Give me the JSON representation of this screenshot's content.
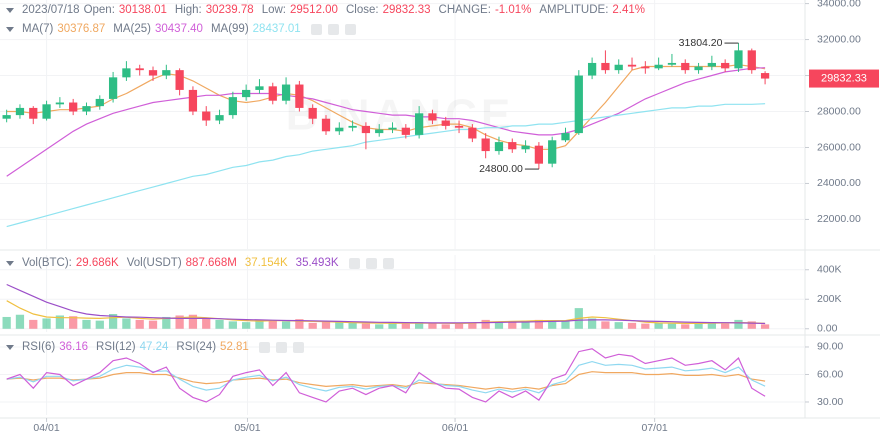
{
  "header": {
    "date": "2023/07/18",
    "items": [
      {
        "label": "Open:",
        "value": "30138.01"
      },
      {
        "label": "High:",
        "value": "30239.78"
      },
      {
        "label": "Low:",
        "value": "29512.00"
      },
      {
        "label": "Close:",
        "value": "29832.33"
      },
      {
        "label": "CHANGE:",
        "value": "-1.01%"
      },
      {
        "label": "AMPLITUDE:",
        "value": "2.41%"
      }
    ]
  },
  "chart_data": [
    {
      "type": "candlestick",
      "watermark": "BINANCE",
      "up_color": "#2ebd85",
      "down_color": "#f6465d",
      "xlim": [
        -0.5,
        60
      ],
      "ylim": [
        20300,
        34200
      ],
      "yticks": [
        {
          "value": 22000,
          "label": "22000.00"
        },
        {
          "value": 24000,
          "label": "24000.00"
        },
        {
          "value": 26000,
          "label": "26000.00"
        },
        {
          "value": 28000,
          "label": "28000.00"
        },
        {
          "value": 30000,
          "label": "30000.00"
        },
        {
          "value": 32000,
          "label": "32000.00"
        },
        {
          "value": 34000,
          "label": "34000.00"
        }
      ],
      "annotations": {
        "high": "31804.20",
        "low": "24800.00"
      },
      "last_price": "29832.33",
      "candles": [
        [
          27600,
          28100,
          27400,
          27800
        ],
        [
          27800,
          28400,
          27600,
          28200
        ],
        [
          28200,
          28300,
          27300,
          27600
        ],
        [
          27600,
          28600,
          27500,
          28400
        ],
        [
          28400,
          28800,
          28200,
          28500
        ],
        [
          28500,
          28700,
          27800,
          28000
        ],
        [
          28000,
          28500,
          27800,
          28300
        ],
        [
          28300,
          28900,
          28100,
          28700
        ],
        [
          28700,
          30200,
          28500,
          29900
        ],
        [
          29900,
          30800,
          29700,
          30400
        ],
        [
          30400,
          30600,
          30000,
          30300
        ],
        [
          30300,
          30500,
          29700,
          30000
        ],
        [
          30000,
          30600,
          29800,
          30300
        ],
        [
          30300,
          30400,
          28900,
          29200
        ],
        [
          29200,
          29400,
          27800,
          28000
        ],
        [
          28000,
          28300,
          27200,
          27500
        ],
        [
          27500,
          28100,
          27300,
          27800
        ],
        [
          27800,
          29100,
          27600,
          28800
        ],
        [
          28800,
          29500,
          28600,
          29200
        ],
        [
          29200,
          29800,
          29000,
          29400
        ],
        [
          29400,
          29600,
          28400,
          28600
        ],
        [
          28600,
          29900,
          28400,
          29500
        ],
        [
          29500,
          29700,
          28000,
          28200
        ],
        [
          28200,
          28400,
          27300,
          27600
        ],
        [
          27600,
          27800,
          26700,
          26900
        ],
        [
          26900,
          27400,
          26700,
          27100
        ],
        [
          27100,
          27500,
          26900,
          27200
        ],
        [
          27200,
          27400,
          25900,
          26800
        ],
        [
          26800,
          27300,
          26600,
          27000
        ],
        [
          27000,
          27400,
          26800,
          27100
        ],
        [
          27100,
          27300,
          26500,
          26700
        ],
        [
          26700,
          28300,
          26500,
          27900
        ],
        [
          27900,
          28100,
          27300,
          27500
        ],
        [
          27500,
          27700,
          27000,
          27200
        ],
        [
          27200,
          27500,
          26800,
          27100
        ],
        [
          27100,
          27300,
          26300,
          26500
        ],
        [
          26500,
          26800,
          25400,
          25800
        ],
        [
          25800,
          26600,
          25600,
          26300
        ],
        [
          26300,
          26500,
          25700,
          25900
        ],
        [
          25900,
          26400,
          25700,
          26100
        ],
        [
          26100,
          26300,
          24800,
          25100
        ],
        [
          25100,
          26600,
          24900,
          26400
        ],
        [
          26400,
          27100,
          26300,
          26800
        ],
        [
          26800,
          30300,
          26700,
          30000
        ],
        [
          30000,
          31000,
          29800,
          30700
        ],
        [
          30700,
          31400,
          30100,
          30300
        ],
        [
          30300,
          30900,
          30100,
          30600
        ],
        [
          30600,
          31000,
          30300,
          30500
        ],
        [
          30500,
          30800,
          30100,
          30400
        ],
        [
          30400,
          31000,
          30300,
          30600
        ],
        [
          30600,
          31200,
          30500,
          30700
        ],
        [
          30700,
          30900,
          30100,
          30300
        ],
        [
          30300,
          30700,
          30100,
          30500
        ],
        [
          30500,
          31100,
          30300,
          30700
        ],
        [
          30700,
          30900,
          30200,
          30400
        ],
        [
          30400,
          31804.2,
          30200,
          31400
        ],
        [
          31400,
          31500,
          30100,
          30300
        ],
        [
          30138.01,
          30239.78,
          29512,
          29832.33
        ]
      ],
      "series": [
        {
          "name": "MA(7)",
          "value_label": "30376.87",
          "color": "#f0a860",
          "values": [
            28000,
            28000,
            27900,
            28000,
            28100,
            28100,
            28200,
            28300,
            28700,
            29000,
            29400,
            29800,
            30100,
            30000,
            29700,
            29300,
            28900,
            28600,
            28500,
            28600,
            28800,
            29000,
            28900,
            28600,
            28200,
            27800,
            27400,
            27100,
            27000,
            27000,
            26900,
            27100,
            27200,
            27300,
            27300,
            27100,
            26700,
            26400,
            26200,
            26100,
            25900,
            25900,
            26100,
            26900,
            27700,
            28500,
            29400,
            30300,
            30500,
            30500,
            30500,
            30500,
            30500,
            30500,
            30500,
            30600,
            30500,
            30377
          ]
        },
        {
          "name": "MA(25)",
          "value_label": "30437.40",
          "color": "#d05fd8",
          "values": [
            24400,
            24900,
            25400,
            25900,
            26400,
            26900,
            27300,
            27600,
            27900,
            28100,
            28300,
            28500,
            28600,
            28700,
            28800,
            28900,
            28900,
            29000,
            29000,
            29000,
            29000,
            28900,
            28800,
            28700,
            28500,
            28300,
            28100,
            28000,
            27900,
            27800,
            27800,
            27700,
            27700,
            27600,
            27600,
            27500,
            27300,
            27100,
            26900,
            26800,
            26700,
            26700,
            26800,
            27000,
            27300,
            27600,
            27900,
            28300,
            28700,
            29000,
            29300,
            29600,
            29800,
            30000,
            30200,
            30300,
            30400,
            30437
          ]
        },
        {
          "name": "MA(99)",
          "value_label": "28437.01",
          "color": "#8fe3f0",
          "values": [
            21600,
            21800,
            22000,
            22200,
            22400,
            22600,
            22800,
            23000,
            23200,
            23400,
            23600,
            23800,
            24000,
            24200,
            24400,
            24500,
            24700,
            24900,
            25000,
            25200,
            25300,
            25500,
            25600,
            25800,
            25900,
            26000,
            26100,
            26300,
            26400,
            26500,
            26600,
            26700,
            26800,
            26900,
            27000,
            27000,
            27100,
            27100,
            27200,
            27200,
            27300,
            27300,
            27400,
            27500,
            27600,
            27700,
            27800,
            27900,
            28000,
            28100,
            28200,
            28200,
            28300,
            28300,
            28400,
            28400,
            28400,
            28437
          ]
        }
      ]
    },
    {
      "type": "bar",
      "ylim": [
        -22000,
        500000
      ],
      "yticks": [
        {
          "value": 0,
          "label": "0.00"
        },
        {
          "value": 200000,
          "label": "200K"
        },
        {
          "value": 400000,
          "label": "400K"
        }
      ],
      "legend": [
        {
          "label": "Vol(BTC):",
          "value": "29.686K"
        },
        {
          "label": "Vol(USDT)",
          "value": "887.668M"
        }
      ],
      "values": [
        80000,
        95000,
        60000,
        70000,
        90000,
        85000,
        60000,
        55000,
        100000,
        70000,
        60000,
        55000,
        80000,
        90000,
        95000,
        70000,
        60000,
        50000,
        45000,
        60000,
        55000,
        50000,
        65000,
        40000,
        50000,
        45000,
        40000,
        35000,
        30000,
        40000,
        35000,
        45000,
        40000,
        30000,
        35000,
        40000,
        60000,
        45000,
        50000,
        55000,
        60000,
        50000,
        55000,
        140000,
        70000,
        50000,
        45000,
        40000,
        35000,
        40000,
        35000,
        30000,
        40000,
        45000,
        35000,
        60000,
        50000,
        29686
      ],
      "series": [
        {
          "value_label": "37.154K",
          "color": "#f0c040",
          "values": [
            190000,
            140000,
            100000,
            80000,
            75000,
            75000,
            72000,
            70000,
            75000,
            78000,
            70000,
            65000,
            70000,
            75000,
            80000,
            75000,
            68000,
            60000,
            55000,
            52000,
            55000,
            55000,
            52000,
            50000,
            48000,
            45000,
            42000,
            40000,
            38000,
            37000,
            38000,
            38000,
            38000,
            37000,
            36000,
            38000,
            45000,
            48000,
            50000,
            52000,
            55000,
            55000,
            55000,
            70000,
            80000,
            75000,
            65000,
            55000,
            45000,
            40000,
            38000,
            36000,
            36000,
            38000,
            40000,
            42000,
            40000,
            37154
          ]
        },
        {
          "value_label": "35.493K",
          "color": "#9b4fc8",
          "values": [
            300000,
            260000,
            220000,
            180000,
            150000,
            120000,
            100000,
            90000,
            85000,
            80000,
            78000,
            75000,
            72000,
            70000,
            70000,
            70000,
            68000,
            65000,
            62000,
            60000,
            58000,
            56000,
            55000,
            54000,
            52000,
            50000,
            48000,
            46000,
            44000,
            43000,
            42000,
            41000,
            40000,
            40000,
            40000,
            41000,
            42000,
            43000,
            45000,
            46000,
            48000,
            50000,
            52000,
            58000,
            60000,
            60000,
            58000,
            55000,
            52000,
            50000,
            48000,
            45000,
            43000,
            42000,
            41000,
            40000,
            38000,
            35493
          ]
        }
      ]
    },
    {
      "type": "line",
      "ylim": [
        15.8,
        97.6
      ],
      "yticks": [
        {
          "value": 30,
          "label": "30.00"
        },
        {
          "value": 60,
          "label": "60.00"
        },
        {
          "value": 90,
          "label": "90.00"
        }
      ],
      "xticks": [
        {
          "value": 3.0,
          "label": "04/01"
        },
        {
          "value": 18.1,
          "label": "05/01"
        },
        {
          "value": 33.7,
          "label": "06/01"
        },
        {
          "value": 48.7,
          "label": "07/01"
        }
      ],
      "series": [
        {
          "name": "RSI(6)",
          "value_label": "36.16",
          "color": "#d05fd8",
          "values": [
            55,
            60,
            45,
            62,
            60,
            48,
            55,
            62,
            75,
            78,
            72,
            62,
            68,
            45,
            35,
            30,
            38,
            58,
            62,
            65,
            48,
            62,
            40,
            35,
            30,
            42,
            45,
            38,
            45,
            48,
            40,
            62,
            52,
            45,
            44,
            35,
            30,
            42,
            35,
            42,
            32,
            55,
            60,
            85,
            88,
            78,
            82,
            80,
            72,
            75,
            78,
            70,
            72,
            75,
            65,
            78,
            45,
            36.16
          ]
        },
        {
          "name": "RSI(12)",
          "value_label": "47.24",
          "color": "#8fd8f0",
          "values": [
            55,
            57,
            52,
            58,
            58,
            53,
            55,
            58,
            66,
            70,
            68,
            63,
            64,
            55,
            47,
            43,
            45,
            54,
            57,
            59,
            53,
            57,
            49,
            45,
            42,
            46,
            47,
            44,
            47,
            48,
            45,
            54,
            51,
            48,
            47,
            43,
            40,
            44,
            41,
            44,
            40,
            49,
            53,
            70,
            74,
            70,
            71,
            70,
            66,
            67,
            68,
            64,
            65,
            67,
            62,
            68,
            54,
            47.24
          ]
        },
        {
          "name": "RSI(24)",
          "value_label": "52.81",
          "color": "#f0a860",
          "values": [
            55,
            56,
            54,
            56,
            56,
            54,
            55,
            56,
            60,
            62,
            62,
            60,
            60,
            56,
            52,
            50,
            51,
            54,
            55,
            56,
            54,
            55,
            51,
            49,
            47,
            48,
            49,
            47,
            48,
            49,
            47,
            51,
            50,
            49,
            48,
            46,
            44,
            46,
            44,
            46,
            44,
            48,
            50,
            60,
            63,
            62,
            62,
            62,
            60,
            60,
            61,
            59,
            59,
            60,
            58,
            60,
            55,
            52.81
          ]
        }
      ]
    }
  ]
}
